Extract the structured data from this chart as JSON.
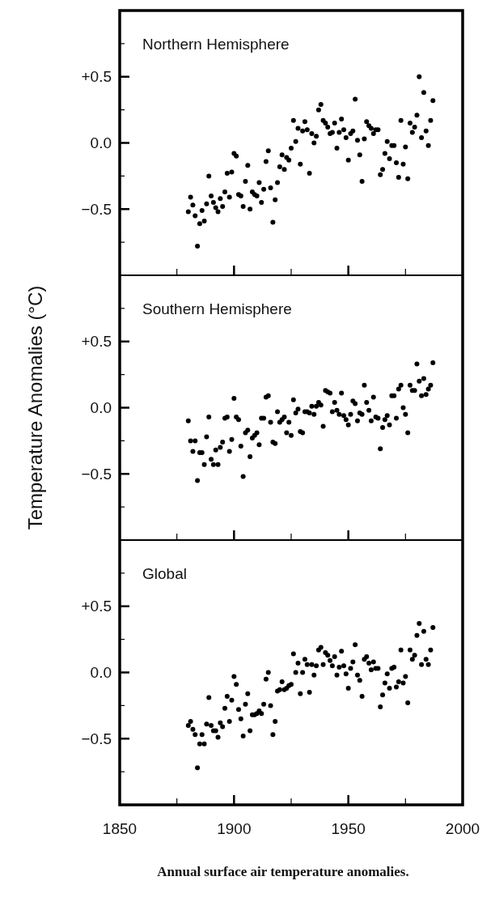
{
  "chart_data": [
    {
      "type": "scatter",
      "title": "Northern Hemisphere",
      "tick_labels": "y",
      "marker": "circle",
      "xlim": [
        1850,
        2000
      ],
      "xticks": [
        {
          "value": 1850,
          "label": null
        },
        {
          "value": 1875,
          "label": null
        },
        {
          "value": 1900,
          "label": null
        },
        {
          "value": 1925,
          "label": null
        },
        {
          "value": 1950,
          "label": null
        },
        {
          "value": 1975,
          "label": null
        },
        {
          "value": 2000,
          "label": null
        }
      ],
      "ylim": [
        -1,
        1
      ],
      "yticks": [
        {
          "value": -0.75,
          "label": null
        },
        {
          "value": -0.5,
          "label": "−0.5"
        },
        {
          "value": -0.25,
          "label": null
        },
        {
          "value": 0,
          "label": "0.0"
        },
        {
          "value": 0.25,
          "label": null
        },
        {
          "value": 0.5,
          "label": "+0.5"
        },
        {
          "value": 0.75,
          "label": null
        }
      ],
      "x": [
        1880,
        1881,
        1882,
        1883,
        1884,
        1885,
        1886,
        1887,
        1888,
        1889,
        1890,
        1891,
        1892,
        1893,
        1894,
        1895,
        1896,
        1897,
        1898,
        1899,
        1900,
        1901,
        1902,
        1903,
        1904,
        1905,
        1906,
        1907,
        1908,
        1909,
        1910,
        1911,
        1912,
        1913,
        1914,
        1915,
        1916,
        1917,
        1918,
        1919,
        1920,
        1921,
        1922,
        1923,
        1924,
        1925,
        1926,
        1927,
        1928,
        1929,
        1930,
        1931,
        1932,
        1933,
        1934,
        1935,
        1936,
        1937,
        1938,
        1939,
        1940,
        1941,
        1942,
        1943,
        1944,
        1945,
        1946,
        1947,
        1948,
        1949,
        1950,
        1951,
        1952,
        1953,
        1954,
        1955,
        1956,
        1957,
        1958,
        1959,
        1960,
        1961,
        1962,
        1963,
        1964,
        1965,
        1966,
        1967,
        1968,
        1969,
        1970,
        1971,
        1972,
        1973,
        1974,
        1975,
        1976,
        1977,
        1978,
        1979,
        1980,
        1981,
        1982,
        1983,
        1984,
        1985,
        1986,
        1987
      ],
      "series": [
        {
          "color": "#000000",
          "values": [
            -0.52,
            -0.41,
            -0.47,
            -0.55,
            -0.78,
            -0.61,
            -0.51,
            -0.59,
            -0.46,
            -0.25,
            -0.4,
            -0.45,
            -0.49,
            -0.52,
            -0.42,
            -0.48,
            -0.37,
            -0.23,
            -0.41,
            -0.22,
            -0.08,
            -0.1,
            -0.39,
            -0.4,
            -0.48,
            -0.29,
            -0.17,
            -0.5,
            -0.37,
            -0.39,
            -0.4,
            -0.3,
            -0.45,
            -0.35,
            -0.14,
            -0.06,
            -0.34,
            -0.6,
            -0.43,
            -0.3,
            -0.18,
            -0.09,
            -0.2,
            -0.11,
            -0.13,
            -0.04,
            0.17,
            0.01,
            0.11,
            -0.16,
            0.09,
            0.16,
            0.1,
            -0.23,
            0.07,
            0.0,
            0.05,
            0.25,
            0.29,
            0.17,
            0.15,
            0.12,
            0.07,
            0.08,
            0.15,
            -0.04,
            0.08,
            0.18,
            0.1,
            0.04,
            -0.13,
            0.07,
            0.09,
            0.33,
            0.02,
            -0.09,
            -0.29,
            0.03,
            0.16,
            0.13,
            0.11,
            0.07,
            0.1,
            0.1,
            -0.24,
            -0.2,
            -0.08,
            0.01,
            -0.12,
            -0.02,
            -0.02,
            -0.15,
            -0.26,
            0.17,
            -0.16,
            -0.03,
            -0.27,
            0.15,
            0.08,
            0.12,
            0.21,
            0.5,
            0.04,
            0.38,
            0.09,
            -0.02,
            0.17,
            0.32
          ]
        }
      ]
    },
    {
      "type": "scatter",
      "title": "Southern Hemisphere",
      "ylabel": "Temperature Anomalies  (°C)",
      "tick_labels": "y",
      "marker": "circle",
      "xlim": [
        1850,
        2000
      ],
      "xticks": [
        {
          "value": 1850,
          "label": null
        },
        {
          "value": 1875,
          "label": null
        },
        {
          "value": 1900,
          "label": null
        },
        {
          "value": 1925,
          "label": null
        },
        {
          "value": 1950,
          "label": null
        },
        {
          "value": 1975,
          "label": null
        },
        {
          "value": 2000,
          "label": null
        }
      ],
      "ylim": [
        -1,
        1
      ],
      "yticks": [
        {
          "value": -0.75,
          "label": null
        },
        {
          "value": -0.5,
          "label": "−0.5"
        },
        {
          "value": -0.25,
          "label": null
        },
        {
          "value": 0,
          "label": "0.0"
        },
        {
          "value": 0.25,
          "label": null
        },
        {
          "value": 0.5,
          "label": "+0.5"
        },
        {
          "value": 0.75,
          "label": null
        }
      ],
      "x": [
        1880,
        1881,
        1882,
        1883,
        1884,
        1885,
        1886,
        1887,
        1888,
        1889,
        1890,
        1891,
        1892,
        1893,
        1894,
        1895,
        1896,
        1897,
        1898,
        1899,
        1900,
        1901,
        1902,
        1903,
        1904,
        1905,
        1906,
        1907,
        1908,
        1909,
        1910,
        1911,
        1912,
        1913,
        1914,
        1915,
        1916,
        1917,
        1918,
        1919,
        1920,
        1921,
        1922,
        1923,
        1924,
        1925,
        1926,
        1927,
        1928,
        1929,
        1930,
        1931,
        1932,
        1933,
        1934,
        1935,
        1936,
        1937,
        1938,
        1939,
        1940,
        1941,
        1942,
        1943,
        1944,
        1945,
        1946,
        1947,
        1948,
        1949,
        1950,
        1951,
        1952,
        1953,
        1954,
        1955,
        1956,
        1957,
        1958,
        1959,
        1960,
        1961,
        1962,
        1963,
        1964,
        1965,
        1966,
        1967,
        1968,
        1969,
        1970,
        1971,
        1972,
        1973,
        1974,
        1975,
        1976,
        1977,
        1978,
        1979,
        1980,
        1981,
        1982,
        1983,
        1984,
        1985,
        1986,
        1987
      ],
      "series": [
        {
          "color": "#000000",
          "values": [
            -0.1,
            -0.25,
            -0.33,
            -0.25,
            -0.55,
            -0.34,
            -0.34,
            -0.43,
            -0.22,
            -0.07,
            -0.39,
            -0.43,
            -0.32,
            -0.43,
            -0.3,
            -0.26,
            -0.08,
            -0.07,
            -0.33,
            -0.24,
            0.07,
            -0.07,
            -0.09,
            -0.29,
            -0.52,
            -0.19,
            -0.17,
            -0.37,
            -0.23,
            -0.21,
            -0.19,
            -0.28,
            -0.08,
            -0.08,
            0.08,
            0.09,
            -0.11,
            -0.26,
            -0.27,
            -0.03,
            -0.11,
            -0.09,
            -0.07,
            -0.19,
            -0.11,
            -0.21,
            0.06,
            -0.04,
            -0.01,
            -0.18,
            -0.19,
            -0.03,
            -0.03,
            -0.04,
            0.01,
            -0.05,
            0.01,
            0.04,
            0.02,
            -0.14,
            0.13,
            0.12,
            0.11,
            -0.03,
            0.04,
            -0.02,
            -0.05,
            0.11,
            -0.06,
            -0.09,
            -0.13,
            -0.05,
            0.05,
            0.03,
            -0.1,
            -0.04,
            -0.05,
            0.17,
            0.04,
            -0.02,
            -0.1,
            0.08,
            -0.07,
            -0.08,
            -0.31,
            -0.15,
            -0.09,
            -0.06,
            -0.13,
            0.09,
            0.09,
            -0.08,
            0.14,
            0.17,
            0.0,
            -0.05,
            -0.19,
            0.17,
            0.13,
            0.13,
            0.33,
            0.2,
            0.09,
            0.22,
            0.1,
            0.14,
            0.17,
            0.34
          ]
        }
      ]
    },
    {
      "type": "scatter",
      "title": "Global",
      "marker": "circle",
      "xlim": [
        1850,
        2000
      ],
      "xticks": [
        {
          "value": 1850,
          "label": "1850"
        },
        {
          "value": 1875,
          "label": null
        },
        {
          "value": 1900,
          "label": "1900"
        },
        {
          "value": 1925,
          "label": null
        },
        {
          "value": 1950,
          "label": "1950"
        },
        {
          "value": 1975,
          "label": null
        },
        {
          "value": 2000,
          "label": "2000"
        }
      ],
      "ylim": [
        -1,
        1
      ],
      "yticks": [
        {
          "value": -0.75,
          "label": null
        },
        {
          "value": -0.5,
          "label": "−0.5"
        },
        {
          "value": -0.25,
          "label": null
        },
        {
          "value": 0,
          "label": "0.0"
        },
        {
          "value": 0.25,
          "label": null
        },
        {
          "value": 0.5,
          "label": "+0.5"
        },
        {
          "value": 0.75,
          "label": null
        }
      ],
      "annotations": [
        "Annual surface air temperature anomalies."
      ],
      "x": [
        1880,
        1881,
        1882,
        1883,
        1884,
        1885,
        1886,
        1887,
        1888,
        1889,
        1890,
        1891,
        1892,
        1893,
        1894,
        1895,
        1896,
        1897,
        1898,
        1899,
        1900,
        1901,
        1902,
        1903,
        1904,
        1905,
        1906,
        1907,
        1908,
        1909,
        1910,
        1911,
        1912,
        1913,
        1914,
        1915,
        1916,
        1917,
        1918,
        1919,
        1920,
        1921,
        1922,
        1923,
        1924,
        1925,
        1926,
        1927,
        1928,
        1929,
        1930,
        1931,
        1932,
        1933,
        1934,
        1935,
        1936,
        1937,
        1938,
        1939,
        1940,
        1941,
        1942,
        1943,
        1944,
        1945,
        1946,
        1947,
        1948,
        1949,
        1950,
        1951,
        1952,
        1953,
        1954,
        1955,
        1956,
        1957,
        1958,
        1959,
        1960,
        1961,
        1962,
        1963,
        1964,
        1965,
        1966,
        1967,
        1968,
        1969,
        1970,
        1971,
        1972,
        1973,
        1974,
        1975,
        1976,
        1977,
        1978,
        1979,
        1980,
        1981,
        1982,
        1983,
        1984,
        1985,
        1986,
        1987
      ],
      "series": [
        {
          "color": "#000000",
          "values": [
            -0.4,
            -0.37,
            -0.43,
            -0.47,
            -0.72,
            -0.54,
            -0.47,
            -0.54,
            -0.39,
            -0.19,
            -0.4,
            -0.44,
            -0.44,
            -0.49,
            -0.38,
            -0.41,
            -0.27,
            -0.18,
            -0.37,
            -0.21,
            -0.03,
            -0.09,
            -0.28,
            -0.35,
            -0.48,
            -0.24,
            -0.16,
            -0.44,
            -0.32,
            -0.32,
            -0.31,
            -0.29,
            -0.31,
            -0.24,
            -0.05,
            0.0,
            -0.25,
            -0.47,
            -0.37,
            -0.14,
            -0.13,
            -0.07,
            -0.13,
            -0.12,
            -0.1,
            -0.09,
            0.14,
            0.0,
            0.07,
            -0.16,
            0.0,
            0.1,
            0.06,
            -0.15,
            0.06,
            -0.02,
            0.05,
            0.17,
            0.19,
            0.06,
            0.15,
            0.13,
            0.09,
            0.05,
            0.12,
            -0.02,
            0.04,
            0.16,
            0.05,
            -0.01,
            -0.12,
            0.03,
            0.08,
            0.21,
            -0.02,
            -0.06,
            -0.18,
            0.1,
            0.12,
            0.07,
            0.02,
            0.08,
            0.03,
            0.03,
            -0.26,
            -0.17,
            -0.08,
            -0.01,
            -0.12,
            0.03,
            0.04,
            -0.11,
            -0.07,
            0.17,
            -0.08,
            -0.03,
            -0.23,
            0.17,
            0.1,
            0.13,
            0.28,
            0.37,
            0.06,
            0.31,
            0.1,
            0.06,
            0.17,
            0.34
          ]
        }
      ]
    }
  ]
}
